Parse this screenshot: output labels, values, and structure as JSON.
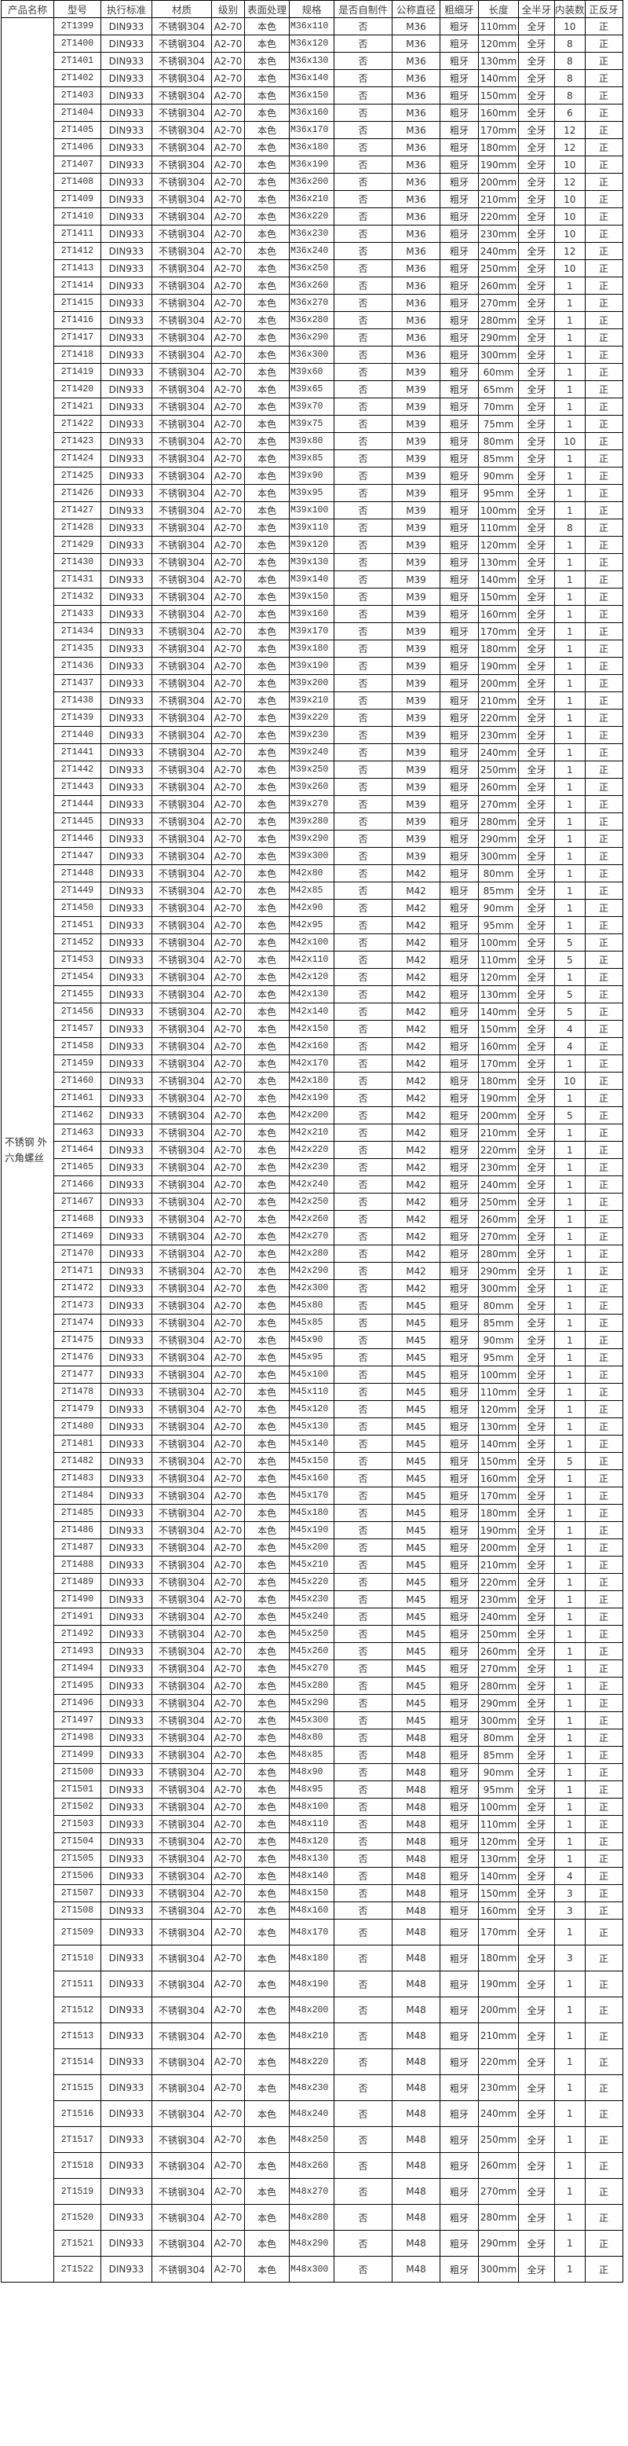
{
  "headers": [
    "产品名称",
    "型号",
    "执行标准",
    "材质",
    "级别",
    "表面处理",
    "规格",
    "是否自制件",
    "公称直径",
    "粗细牙",
    "长度",
    "全半牙",
    "内装数",
    "正反牙"
  ],
  "product_name": "不锈钢 外六角螺丝",
  "common": {
    "standard": "DIN933",
    "material": "不锈钢304",
    "grade": "A2-70",
    "surface": "本色",
    "self_made": "否",
    "thread": "粗牙",
    "full_half": "全牙",
    "direction": "正"
  },
  "rows": [
    [
      "2T1399",
      "M36x110",
      "M36",
      "110mm",
      "10"
    ],
    [
      "2T1400",
      "M36x120",
      "M36",
      "120mm",
      "8"
    ],
    [
      "2T1401",
      "M36x130",
      "M36",
      "130mm",
      "8"
    ],
    [
      "2T1402",
      "M36x140",
      "M36",
      "140mm",
      "8"
    ],
    [
      "2T1403",
      "M36x150",
      "M36",
      "150mm",
      "8"
    ],
    [
      "2T1404",
      "M36x160",
      "M36",
      "160mm",
      "6"
    ],
    [
      "2T1405",
      "M36x170",
      "M36",
      "170mm",
      "12"
    ],
    [
      "2T1406",
      "M36x180",
      "M36",
      "180mm",
      "12"
    ],
    [
      "2T1407",
      "M36x190",
      "M36",
      "190mm",
      "10"
    ],
    [
      "2T1408",
      "M36x200",
      "M36",
      "200mm",
      "12"
    ],
    [
      "2T1409",
      "M36x210",
      "M36",
      "210mm",
      "10"
    ],
    [
      "2T1410",
      "M36x220",
      "M36",
      "220mm",
      "10"
    ],
    [
      "2T1411",
      "M36x230",
      "M36",
      "230mm",
      "10"
    ],
    [
      "2T1412",
      "M36x240",
      "M36",
      "240mm",
      "12"
    ],
    [
      "2T1413",
      "M36x250",
      "M36",
      "250mm",
      "10"
    ],
    [
      "2T1414",
      "M36x260",
      "M36",
      "260mm",
      "1"
    ],
    [
      "2T1415",
      "M36x270",
      "M36",
      "270mm",
      "1"
    ],
    [
      "2T1416",
      "M36x280",
      "M36",
      "280mm",
      "1"
    ],
    [
      "2T1417",
      "M36x290",
      "M36",
      "290mm",
      "1"
    ],
    [
      "2T1418",
      "M36x300",
      "M36",
      "300mm",
      "1"
    ],
    [
      "2T1419",
      "M39x60",
      "M39",
      "60mm",
      "1"
    ],
    [
      "2T1420",
      "M39x65",
      "M39",
      "65mm",
      "1"
    ],
    [
      "2T1421",
      "M39x70",
      "M39",
      "70mm",
      "1"
    ],
    [
      "2T1422",
      "M39x75",
      "M39",
      "75mm",
      "1"
    ],
    [
      "2T1423",
      "M39x80",
      "M39",
      "80mm",
      "10"
    ],
    [
      "2T1424",
      "M39x85",
      "M39",
      "85mm",
      "1"
    ],
    [
      "2T1425",
      "M39x90",
      "M39",
      "90mm",
      "1"
    ],
    [
      "2T1426",
      "M39x95",
      "M39",
      "95mm",
      "1"
    ],
    [
      "2T1427",
      "M39x100",
      "M39",
      "100mm",
      "1"
    ],
    [
      "2T1428",
      "M39x110",
      "M39",
      "110mm",
      "8"
    ],
    [
      "2T1429",
      "M39x120",
      "M39",
      "120mm",
      "1"
    ],
    [
      "2T1430",
      "M39x130",
      "M39",
      "130mm",
      "1"
    ],
    [
      "2T1431",
      "M39x140",
      "M39",
      "140mm",
      "1"
    ],
    [
      "2T1432",
      "M39x150",
      "M39",
      "150mm",
      "1"
    ],
    [
      "2T1433",
      "M39x160",
      "M39",
      "160mm",
      "1"
    ],
    [
      "2T1434",
      "M39x170",
      "M39",
      "170mm",
      "1"
    ],
    [
      "2T1435",
      "M39x180",
      "M39",
      "180mm",
      "1"
    ],
    [
      "2T1436",
      "M39x190",
      "M39",
      "190mm",
      "1"
    ],
    [
      "2T1437",
      "M39x200",
      "M39",
      "200mm",
      "1"
    ],
    [
      "2T1438",
      "M39x210",
      "M39",
      "210mm",
      "1"
    ],
    [
      "2T1439",
      "M39x220",
      "M39",
      "220mm",
      "1"
    ],
    [
      "2T1440",
      "M39x230",
      "M39",
      "230mm",
      "1"
    ],
    [
      "2T1441",
      "M39x240",
      "M39",
      "240mm",
      "1"
    ],
    [
      "2T1442",
      "M39x250",
      "M39",
      "250mm",
      "1"
    ],
    [
      "2T1443",
      "M39x260",
      "M39",
      "260mm",
      "1"
    ],
    [
      "2T1444",
      "M39x270",
      "M39",
      "270mm",
      "1"
    ],
    [
      "2T1445",
      "M39x280",
      "M39",
      "280mm",
      "1"
    ],
    [
      "2T1446",
      "M39x290",
      "M39",
      "290mm",
      "1"
    ],
    [
      "2T1447",
      "M39x300",
      "M39",
      "300mm",
      "1"
    ],
    [
      "2T1448",
      "M42x80",
      "M42",
      "80mm",
      "1"
    ],
    [
      "2T1449",
      "M42x85",
      "M42",
      "85mm",
      "1"
    ],
    [
      "2T1450",
      "M42x90",
      "M42",
      "90mm",
      "1"
    ],
    [
      "2T1451",
      "M42x95",
      "M42",
      "95mm",
      "1"
    ],
    [
      "2T1452",
      "M42x100",
      "M42",
      "100mm",
      "5"
    ],
    [
      "2T1453",
      "M42x110",
      "M42",
      "110mm",
      "5"
    ],
    [
      "2T1454",
      "M42x120",
      "M42",
      "120mm",
      "1"
    ],
    [
      "2T1455",
      "M42x130",
      "M42",
      "130mm",
      "5"
    ],
    [
      "2T1456",
      "M42x140",
      "M42",
      "140mm",
      "5"
    ],
    [
      "2T1457",
      "M42x150",
      "M42",
      "150mm",
      "4"
    ],
    [
      "2T1458",
      "M42x160",
      "M42",
      "160mm",
      "4"
    ],
    [
      "2T1459",
      "M42x170",
      "M42",
      "170mm",
      "1"
    ],
    [
      "2T1460",
      "M42x180",
      "M42",
      "180mm",
      "10"
    ],
    [
      "2T1461",
      "M42x190",
      "M42",
      "190mm",
      "1"
    ],
    [
      "2T1462",
      "M42x200",
      "M42",
      "200mm",
      "5"
    ],
    [
      "2T1463",
      "M42x210",
      "M42",
      "210mm",
      "1"
    ],
    [
      "2T1464",
      "M42x220",
      "M42",
      "220mm",
      "1"
    ],
    [
      "2T1465",
      "M42x230",
      "M42",
      "230mm",
      "1"
    ],
    [
      "2T1466",
      "M42x240",
      "M42",
      "240mm",
      "1"
    ],
    [
      "2T1467",
      "M42x250",
      "M42",
      "250mm",
      "1"
    ],
    [
      "2T1468",
      "M42x260",
      "M42",
      "260mm",
      "1"
    ],
    [
      "2T1469",
      "M42x270",
      "M42",
      "270mm",
      "1"
    ],
    [
      "2T1470",
      "M42x280",
      "M42",
      "280mm",
      "1"
    ],
    [
      "2T1471",
      "M42x290",
      "M42",
      "290mm",
      "1"
    ],
    [
      "2T1472",
      "M42x300",
      "M42",
      "300mm",
      "1"
    ],
    [
      "2T1473",
      "M45x80",
      "M45",
      "80mm",
      "1"
    ],
    [
      "2T1474",
      "M45x85",
      "M45",
      "85mm",
      "1"
    ],
    [
      "2T1475",
      "M45x90",
      "M45",
      "90mm",
      "1"
    ],
    [
      "2T1476",
      "M45x95",
      "M45",
      "95mm",
      "1"
    ],
    [
      "2T1477",
      "M45x100",
      "M45",
      "100mm",
      "1"
    ],
    [
      "2T1478",
      "M45x110",
      "M45",
      "110mm",
      "1"
    ],
    [
      "2T1479",
      "M45x120",
      "M45",
      "120mm",
      "1"
    ],
    [
      "2T1480",
      "M45x130",
      "M45",
      "130mm",
      "1"
    ],
    [
      "2T1481",
      "M45x140",
      "M45",
      "140mm",
      "1"
    ],
    [
      "2T1482",
      "M45x150",
      "M45",
      "150mm",
      "5"
    ],
    [
      "2T1483",
      "M45x160",
      "M45",
      "160mm",
      "1"
    ],
    [
      "2T1484",
      "M45x170",
      "M45",
      "170mm",
      "1"
    ],
    [
      "2T1485",
      "M45x180",
      "M45",
      "180mm",
      "1"
    ],
    [
      "2T1486",
      "M45x190",
      "M45",
      "190mm",
      "1"
    ],
    [
      "2T1487",
      "M45x200",
      "M45",
      "200mm",
      "1"
    ],
    [
      "2T1488",
      "M45x210",
      "M45",
      "210mm",
      "1"
    ],
    [
      "2T1489",
      "M45x220",
      "M45",
      "220mm",
      "1"
    ],
    [
      "2T1490",
      "M45x230",
      "M45",
      "230mm",
      "1"
    ],
    [
      "2T1491",
      "M45x240",
      "M45",
      "240mm",
      "1"
    ],
    [
      "2T1492",
      "M45x250",
      "M45",
      "250mm",
      "1"
    ],
    [
      "2T1493",
      "M45x260",
      "M45",
      "260mm",
      "1"
    ],
    [
      "2T1494",
      "M45x270",
      "M45",
      "270mm",
      "1"
    ],
    [
      "2T1495",
      "M45x280",
      "M45",
      "280mm",
      "1"
    ],
    [
      "2T1496",
      "M45x290",
      "M45",
      "290mm",
      "1"
    ],
    [
      "2T1497",
      "M45x300",
      "M45",
      "300mm",
      "1"
    ],
    [
      "2T1498",
      "M48x80",
      "M48",
      "80mm",
      "1"
    ],
    [
      "2T1499",
      "M48x85",
      "M48",
      "85mm",
      "1"
    ],
    [
      "2T1500",
      "M48x90",
      "M48",
      "90mm",
      "1"
    ],
    [
      "2T1501",
      "M48x95",
      "M48",
      "95mm",
      "1"
    ],
    [
      "2T1502",
      "M48x100",
      "M48",
      "100mm",
      "1"
    ],
    [
      "2T1503",
      "M48x110",
      "M48",
      "110mm",
      "1"
    ],
    [
      "2T1504",
      "M48x120",
      "M48",
      "120mm",
      "1"
    ],
    [
      "2T1505",
      "M48x130",
      "M48",
      "130mm",
      "1"
    ],
    [
      "2T1506",
      "M48x140",
      "M48",
      "140mm",
      "4"
    ],
    [
      "2T1507",
      "M48x150",
      "M48",
      "150mm",
      "3"
    ],
    [
      "2T1508",
      "M48x160",
      "M48",
      "160mm",
      "3"
    ],
    [
      "2T1509",
      "M48x170",
      "M48",
      "170mm",
      "1"
    ],
    [
      "2T1510",
      "M48x180",
      "M48",
      "180mm",
      "3"
    ],
    [
      "2T1511",
      "M48x190",
      "M48",
      "190mm",
      "1"
    ],
    [
      "2T1512",
      "M48x200",
      "M48",
      "200mm",
      "1"
    ],
    [
      "2T1513",
      "M48x210",
      "M48",
      "210mm",
      "1"
    ],
    [
      "2T1514",
      "M48x220",
      "M48",
      "220mm",
      "1"
    ],
    [
      "2T1515",
      "M48x230",
      "M48",
      "230mm",
      "1"
    ],
    [
      "2T1516",
      "M48x240",
      "M48",
      "240mm",
      "1"
    ],
    [
      "2T1517",
      "M48x250",
      "M48",
      "250mm",
      "1"
    ],
    [
      "2T1518",
      "M48x260",
      "M48",
      "260mm",
      "1"
    ],
    [
      "2T1519",
      "M48x270",
      "M48",
      "270mm",
      "1"
    ],
    [
      "2T1520",
      "M48x280",
      "M48",
      "280mm",
      "1"
    ],
    [
      "2T1521",
      "M48x290",
      "M48",
      "290mm",
      "1"
    ],
    [
      "2T1522",
      "M48x300",
      "M48",
      "300mm",
      "1"
    ]
  ]
}
